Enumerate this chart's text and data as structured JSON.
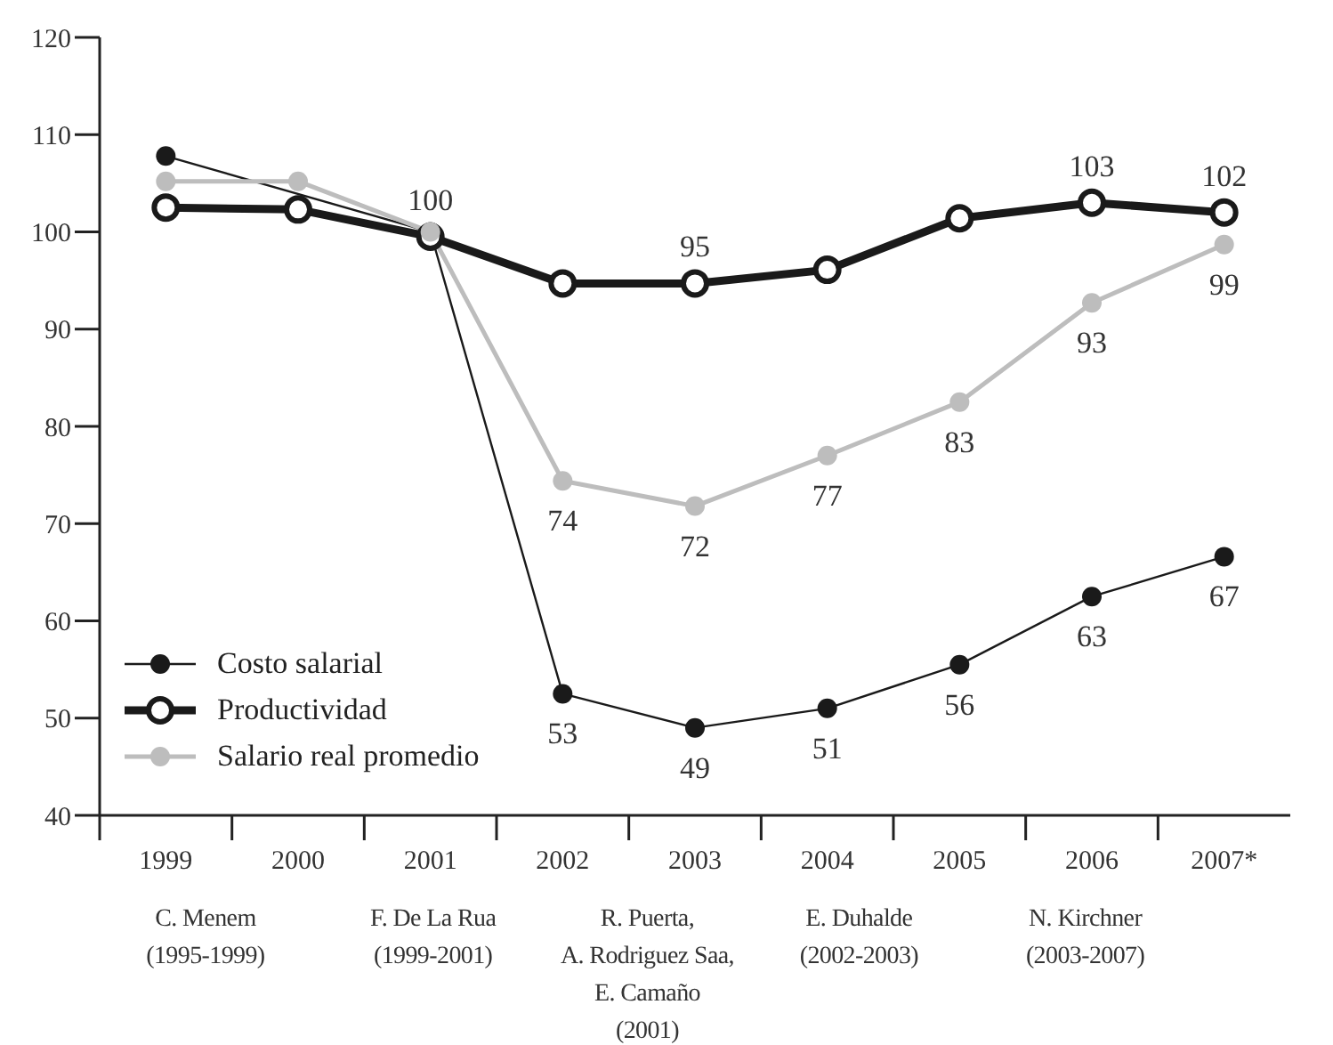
{
  "chart_data": {
    "type": "line",
    "categories": [
      "1999",
      "2000",
      "2001",
      "2002",
      "2003",
      "2004",
      "2005",
      "2006",
      "2007*"
    ],
    "series": [
      {
        "name": "Costo salarial",
        "color": "#1a1a1a",
        "values": [
          107.8,
          null,
          100,
          52.5,
          49,
          51,
          55.5,
          62.5,
          66.6
        ],
        "value_labels": [
          null,
          null,
          null,
          "53",
          "49",
          "51",
          "56",
          "63",
          "67"
        ]
      },
      {
        "name": "Productividad",
        "color": "#1a1a1a",
        "values": [
          102.5,
          102.3,
          99.5,
          94.7,
          94.7,
          96.1,
          101.4,
          103,
          102
        ],
        "value_labels": [
          null,
          null,
          "100",
          null,
          "95",
          null,
          null,
          "103",
          "102"
        ]
      },
      {
        "name": "Salario real promedio",
        "color": "#bdbdbd",
        "values": [
          105.2,
          105.2,
          100,
          74.4,
          71.8,
          77,
          82.5,
          92.7,
          98.7
        ],
        "value_labels": [
          null,
          null,
          null,
          "74",
          "72",
          "77",
          "83",
          "93",
          "99"
        ]
      }
    ],
    "ylim": [
      40,
      120
    ],
    "yticks": [
      40,
      50,
      60,
      70,
      80,
      90,
      100,
      110,
      120
    ],
    "grid": false,
    "legend": "bottom left",
    "marker": "circle",
    "annotations": [
      "C. Menem\n(1995-1999)",
      "F. De La Rua\n(1999-2001)",
      "R. Puerta,\nA. Rodriguez Saa,\nE. Camaño\n(2001)",
      "E. Duhalde\n(2002-2003)",
      "N. Kirchner\n(2003-2007)"
    ]
  }
}
